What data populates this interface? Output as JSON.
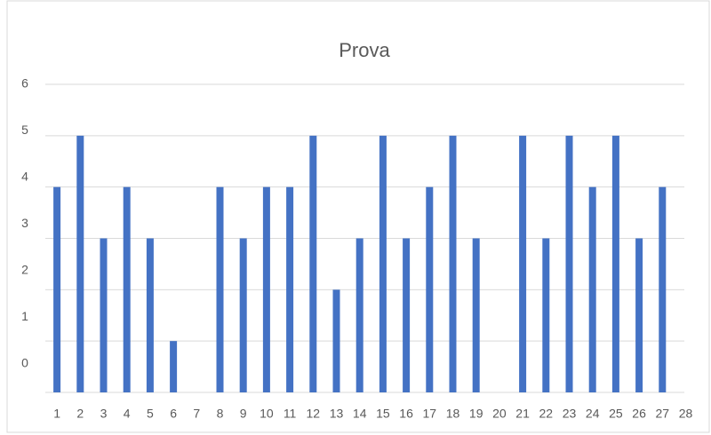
{
  "chart_data": {
    "type": "bar",
    "title": "Prova",
    "categories": [
      "1",
      "2",
      "3",
      "4",
      "5",
      "6",
      "7",
      "8",
      "9",
      "10",
      "11",
      "12",
      "13",
      "14",
      "15",
      "16",
      "17",
      "18",
      "19",
      "20",
      "21",
      "22",
      "23",
      "24",
      "25",
      "26",
      "27",
      "28"
    ],
    "values": [
      4,
      5,
      3,
      4,
      3,
      1,
      0,
      4,
      3,
      4,
      4,
      5,
      2,
      3,
      5,
      3,
      4,
      5,
      3,
      0,
      5,
      3,
      5,
      4,
      5,
      3,
      4,
      null
    ],
    "color": "#4472c4",
    "ylim": [
      0,
      6
    ],
    "yticks": [
      0,
      1,
      2,
      3,
      4,
      5,
      6
    ],
    "grid": true
  }
}
